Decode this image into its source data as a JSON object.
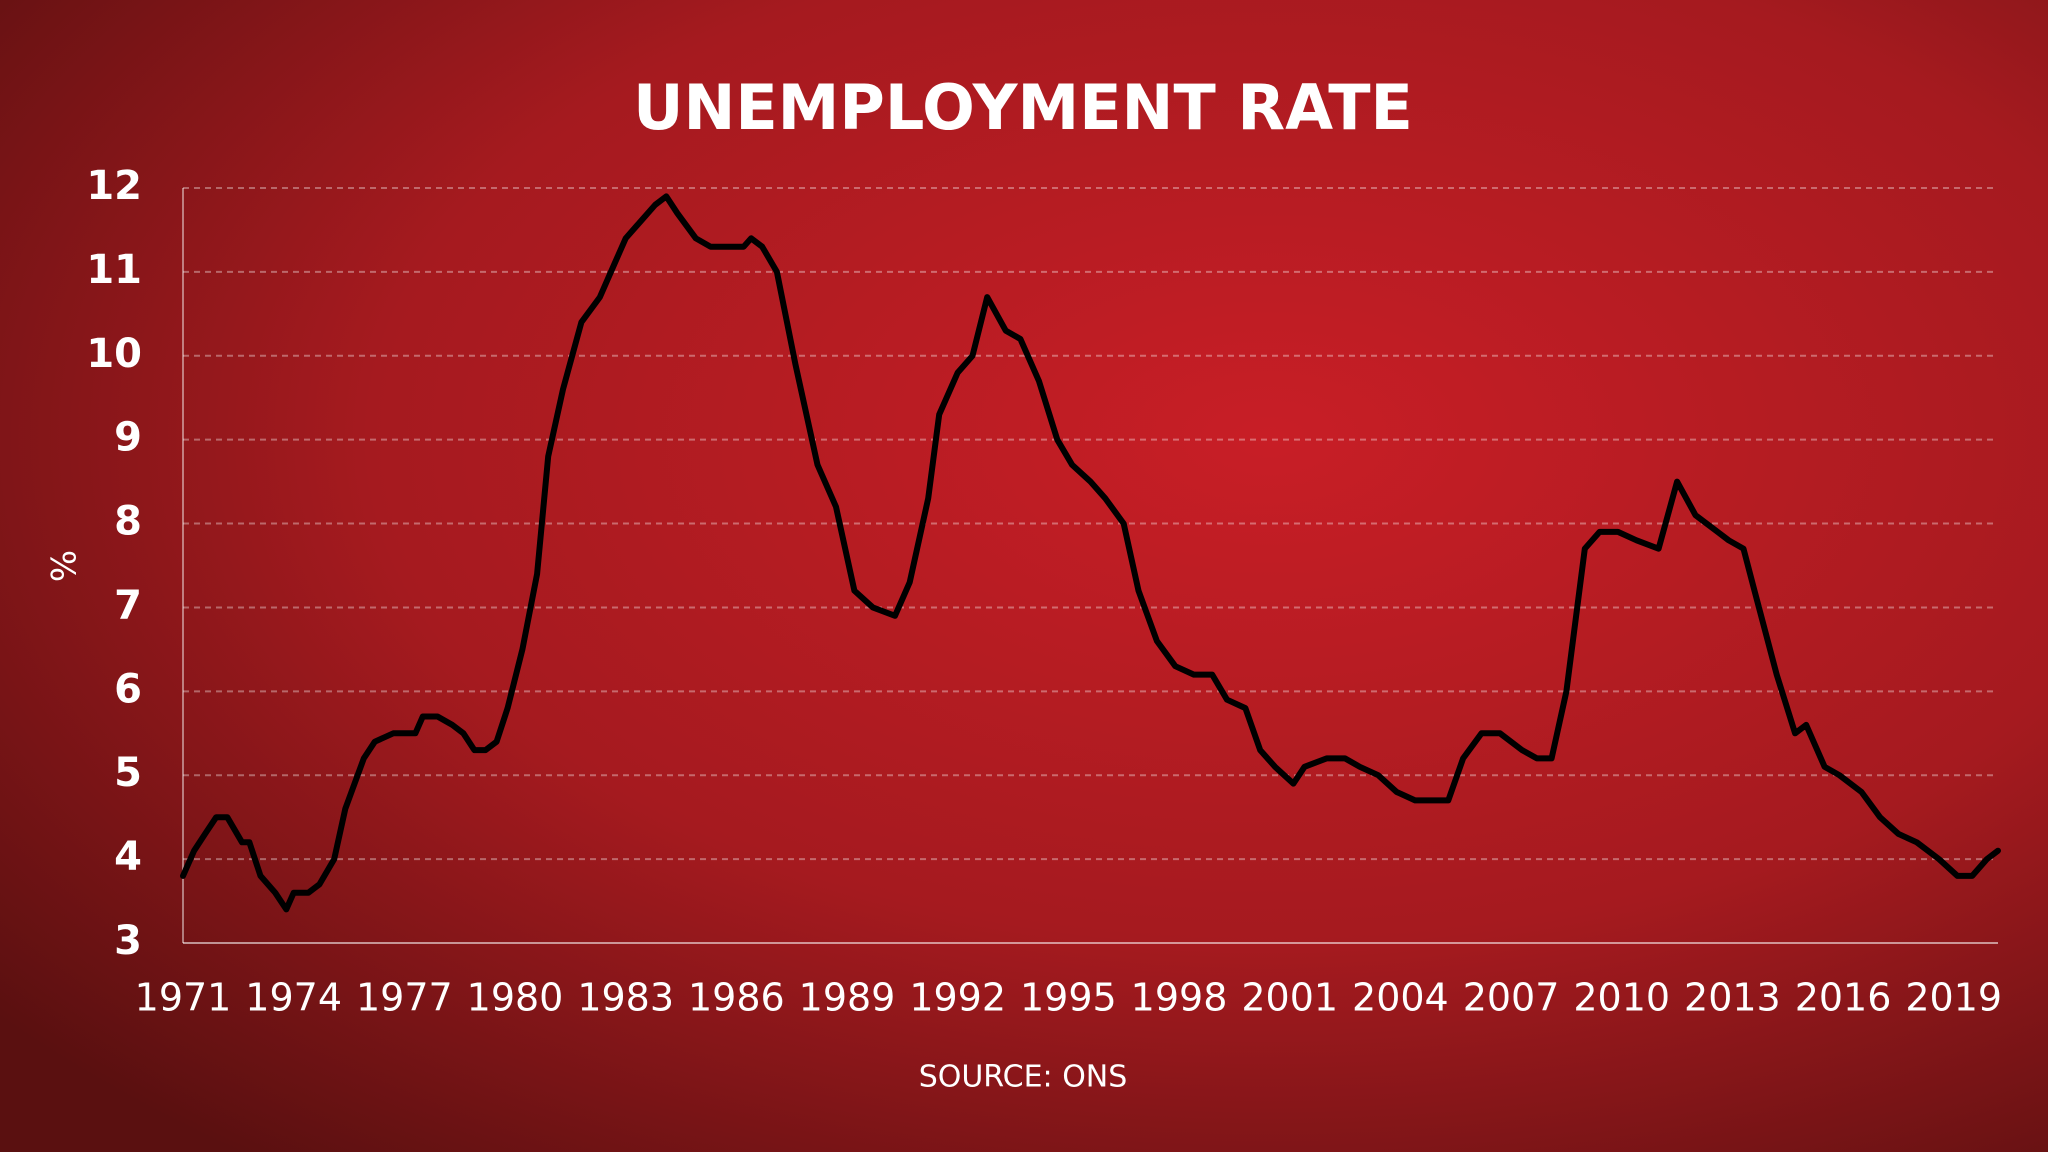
{
  "chart_data": {
    "type": "line",
    "title": "UNEMPLOYMENT RATE",
    "y_label": "%",
    "source": "SOURCE: ONS",
    "color": "#000000",
    "grid": true,
    "xlim": [
      1971,
      2020.2
    ],
    "xticks": [
      1971,
      1974,
      1977,
      1980,
      1983,
      1986,
      1989,
      1992,
      1995,
      1998,
      2001,
      2004,
      2007,
      2010,
      2013,
      2016,
      2019
    ],
    "ylim": [
      3,
      12
    ],
    "yticks": [
      3,
      4,
      5,
      6,
      7,
      8,
      9,
      10,
      11,
      12
    ],
    "x": [
      1971.0,
      1971.3,
      1971.6,
      1971.9,
      1972.2,
      1972.6,
      1972.8,
      1973.1,
      1973.5,
      1973.8,
      1974.0,
      1974.4,
      1974.7,
      1975.1,
      1975.4,
      1975.9,
      1976.2,
      1976.7,
      1977.3,
      1977.5,
      1977.9,
      1978.3,
      1978.6,
      1978.9,
      1979.2,
      1979.5,
      1979.8,
      1980.2,
      1980.6,
      1980.9,
      1981.3,
      1981.8,
      1982.3,
      1982.7,
      1983.0,
      1983.4,
      1983.8,
      1984.1,
      1984.4,
      1984.9,
      1985.3,
      1986.2,
      1986.4,
      1986.7,
      1987.1,
      1987.6,
      1988.2,
      1988.7,
      1989.2,
      1989.7,
      1990.3,
      1990.7,
      1991.2,
      1991.5,
      1992.0,
      1992.4,
      1992.8,
      1993.3,
      1993.7,
      1994.2,
      1994.7,
      1995.1,
      1995.6,
      1996.0,
      1996.5,
      1996.9,
      1997.4,
      1997.9,
      1998.4,
      1998.9,
      1999.3,
      1999.8,
      2000.2,
      2000.6,
      2001.1,
      2001.4,
      2002.0,
      2002.5,
      2002.9,
      2003.4,
      2003.9,
      2004.4,
      2004.9,
      2005.3,
      2005.7,
      2006.2,
      2006.7,
      2007.3,
      2007.7,
      2008.1,
      2008.5,
      2009.0,
      2009.4,
      2009.9,
      2010.4,
      2011.0,
      2011.5,
      2012.0,
      2012.6,
      2012.9,
      2013.3,
      2013.6,
      2014.2,
      2014.7,
      2015.0,
      2015.5,
      2015.9,
      2016.5,
      2017.0,
      2017.5,
      2018.0,
      2018.6,
      2019.1,
      2019.5,
      2019.9,
      2020.2
    ],
    "values": [
      3.8,
      4.1,
      4.3,
      4.5,
      4.5,
      4.2,
      4.2,
      3.8,
      3.6,
      3.4,
      3.6,
      3.6,
      3.7,
      4.0,
      4.6,
      5.2,
      5.4,
      5.5,
      5.5,
      5.7,
      5.7,
      5.6,
      5.5,
      5.3,
      5.3,
      5.4,
      5.8,
      6.5,
      7.4,
      8.8,
      9.6,
      10.4,
      10.7,
      11.1,
      11.4,
      11.6,
      11.8,
      11.9,
      11.7,
      11.4,
      11.3,
      11.3,
      11.4,
      11.3,
      11.0,
      9.9,
      8.7,
      8.2,
      7.2,
      7.0,
      6.9,
      7.3,
      8.3,
      9.3,
      9.8,
      10.0,
      10.7,
      10.3,
      10.2,
      9.7,
      9.0,
      8.7,
      8.5,
      8.3,
      8.0,
      7.2,
      6.6,
      6.3,
      6.2,
      6.2,
      5.9,
      5.8,
      5.3,
      5.1,
      4.9,
      5.1,
      5.2,
      5.2,
      5.1,
      5.0,
      4.8,
      4.7,
      4.7,
      4.7,
      5.2,
      5.5,
      5.5,
      5.3,
      5.2,
      5.2,
      6.0,
      7.7,
      7.9,
      7.9,
      7.8,
      7.7,
      8.5,
      8.1,
      7.9,
      7.8,
      7.7,
      7.2,
      6.2,
      5.5,
      5.6,
      5.1,
      5.0,
      4.8,
      4.5,
      4.3,
      4.2,
      4.0,
      3.8,
      3.8,
      4.0,
      4.1
    ]
  }
}
